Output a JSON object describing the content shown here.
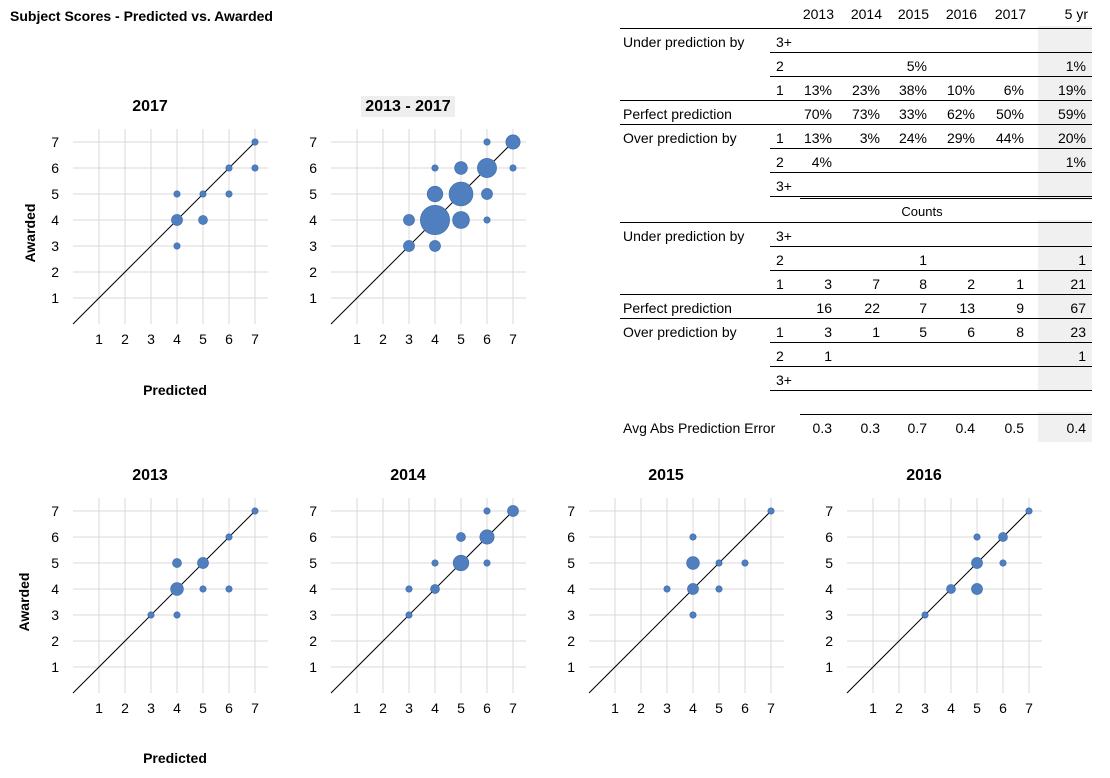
{
  "page_title": "Subject Scores - Predicted vs. Awarded",
  "axes": {
    "xlabel": "Predicted",
    "ylabel": "Awarded",
    "ticks": [
      "1",
      "2",
      "3",
      "4",
      "5",
      "6",
      "7"
    ],
    "xlim": [
      0,
      7.5
    ],
    "ylim": [
      0,
      7.5
    ]
  },
  "colors": {
    "bubble": "#4f7fbf",
    "bubble_edge": "#3f6aa8",
    "grid": "#d9d9d9",
    "diagonal": "#000000"
  },
  "chart_data": [
    {
      "type": "scatter",
      "title": "2017",
      "points": [
        [
          4,
          3,
          1
        ],
        [
          4,
          4,
          3
        ],
        [
          4,
          5,
          1
        ],
        [
          5,
          4,
          2
        ],
        [
          5,
          5,
          1
        ],
        [
          6,
          5,
          1
        ],
        [
          6,
          6,
          1
        ],
        [
          7,
          6,
          1
        ],
        [
          7,
          7,
          1
        ]
      ]
    },
    {
      "type": "scatter",
      "title": "2013 - 2017",
      "points": [
        [
          3,
          3,
          3
        ],
        [
          3,
          4,
          3
        ],
        [
          4,
          3,
          3
        ],
        [
          4,
          4,
          21
        ],
        [
          4,
          5,
          6
        ],
        [
          4,
          6,
          1
        ],
        [
          5,
          4,
          7
        ],
        [
          5,
          5,
          14
        ],
        [
          5,
          6,
          4
        ],
        [
          6,
          4,
          1
        ],
        [
          6,
          5,
          3
        ],
        [
          6,
          6,
          9
        ],
        [
          6,
          7,
          1
        ],
        [
          7,
          6,
          1
        ],
        [
          7,
          7,
          5
        ]
      ]
    },
    {
      "type": "scatter",
      "title": "2013",
      "points": [
        [
          3,
          3,
          1
        ],
        [
          4,
          3,
          1
        ],
        [
          4,
          4,
          4
        ],
        [
          4,
          5,
          2
        ],
        [
          5,
          4,
          1
        ],
        [
          5,
          5,
          3
        ],
        [
          6,
          4,
          1
        ],
        [
          6,
          6,
          1
        ],
        [
          7,
          7,
          1
        ]
      ]
    },
    {
      "type": "scatter",
      "title": "2014",
      "points": [
        [
          3,
          3,
          1
        ],
        [
          3,
          4,
          1
        ],
        [
          4,
          4,
          2
        ],
        [
          4,
          5,
          1
        ],
        [
          5,
          5,
          6
        ],
        [
          5,
          6,
          2
        ],
        [
          6,
          5,
          1
        ],
        [
          6,
          6,
          5
        ],
        [
          6,
          7,
          1
        ],
        [
          7,
          7,
          3
        ]
      ]
    },
    {
      "type": "scatter",
      "title": "2015",
      "points": [
        [
          3,
          4,
          1
        ],
        [
          4,
          3,
          1
        ],
        [
          4,
          4,
          3
        ],
        [
          4,
          5,
          4
        ],
        [
          4,
          6,
          1
        ],
        [
          5,
          4,
          1
        ],
        [
          5,
          5,
          1
        ],
        [
          6,
          5,
          1
        ],
        [
          7,
          7,
          1
        ]
      ]
    },
    {
      "type": "scatter",
      "title": "2016",
      "points": [
        [
          3,
          3,
          1
        ],
        [
          4,
          4,
          2
        ],
        [
          5,
          4,
          3
        ],
        [
          5,
          5,
          3
        ],
        [
          5,
          6,
          1
        ],
        [
          6,
          5,
          1
        ],
        [
          6,
          6,
          2
        ],
        [
          7,
          7,
          1
        ]
      ]
    },
    {
      "type": "table",
      "title": "",
      "columns": [
        "2013",
        "2014",
        "2015",
        "2016",
        "2017",
        "5 yr"
      ],
      "percent_rows": [
        {
          "label": "Under prediction by",
          "level": "3+",
          "values": [
            "",
            "",
            "",
            "",
            "",
            ""
          ]
        },
        {
          "label": "",
          "level": "2",
          "values": [
            "",
            "",
            "5%",
            "",
            "",
            "1%"
          ]
        },
        {
          "label": "",
          "level": "1",
          "values": [
            "13%",
            "23%",
            "38%",
            "10%",
            "6%",
            "19%"
          ]
        },
        {
          "label": "Perfect prediction",
          "level": "",
          "values": [
            "70%",
            "73%",
            "33%",
            "62%",
            "50%",
            "59%"
          ]
        },
        {
          "label": "Over prediction by",
          "level": "1",
          "values": [
            "13%",
            "3%",
            "24%",
            "29%",
            "44%",
            "20%"
          ]
        },
        {
          "label": "",
          "level": "2",
          "values": [
            "4%",
            "",
            "",
            "",
            "",
            "1%"
          ]
        },
        {
          "label": "",
          "level": "3+",
          "values": [
            "",
            "",
            "",
            "",
            "",
            ""
          ]
        }
      ],
      "counts_label": "Counts",
      "count_rows": [
        {
          "label": "Under prediction by",
          "level": "3+",
          "values": [
            "",
            "",
            "",
            "",
            "",
            ""
          ]
        },
        {
          "label": "",
          "level": "2",
          "values": [
            "",
            "",
            "1",
            "",
            "",
            "1"
          ]
        },
        {
          "label": "",
          "level": "1",
          "values": [
            "3",
            "7",
            "8",
            "2",
            "1",
            "21"
          ]
        },
        {
          "label": "Perfect prediction",
          "level": "",
          "values": [
            "16",
            "22",
            "7",
            "13",
            "9",
            "67"
          ]
        },
        {
          "label": "Over prediction by",
          "level": "1",
          "values": [
            "3",
            "1",
            "5",
            "6",
            "8",
            "23"
          ]
        },
        {
          "label": "",
          "level": "2",
          "values": [
            "1",
            "",
            "",
            "",
            "",
            "1"
          ]
        },
        {
          "label": "",
          "level": "3+",
          "values": [
            "",
            "",
            "",
            "",
            "",
            ""
          ]
        }
      ],
      "error_row": {
        "label": "Avg Abs Prediction Error",
        "values": [
          "0.3",
          "0.3",
          "0.7",
          "0.4",
          "0.5",
          "0.4"
        ]
      }
    }
  ]
}
